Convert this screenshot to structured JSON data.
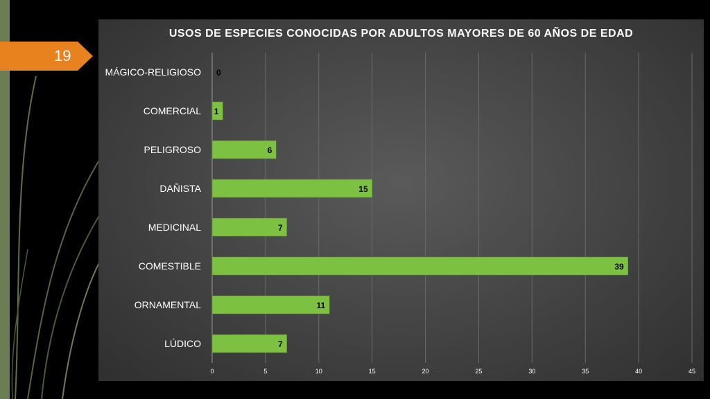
{
  "slide": {
    "number": "19"
  },
  "colors": {
    "bar": "#7dc142",
    "badge": "#e8821e",
    "strip": "#6b7d52"
  },
  "chart_data": {
    "type": "bar",
    "orientation": "horizontal",
    "title": "USOS DE ESPECIES CONOCIDAS POR ADULTOS MAYORES DE 60 AÑOS DE EDAD",
    "categories": [
      "MÁGICO-RELIGIOSO",
      "COMERCIAL",
      "PELIGROSO",
      "DAÑISTA",
      "MEDICINAL",
      "COMESTIBLE",
      "ORNAMENTAL",
      "LÚDICO"
    ],
    "values": [
      0,
      1,
      6,
      15,
      7,
      39,
      11,
      7
    ],
    "xlim": [
      0,
      45
    ],
    "xticks": [
      0,
      5,
      10,
      15,
      20,
      25,
      30,
      35,
      40,
      45
    ],
    "grid": true,
    "data_labels": true
  }
}
